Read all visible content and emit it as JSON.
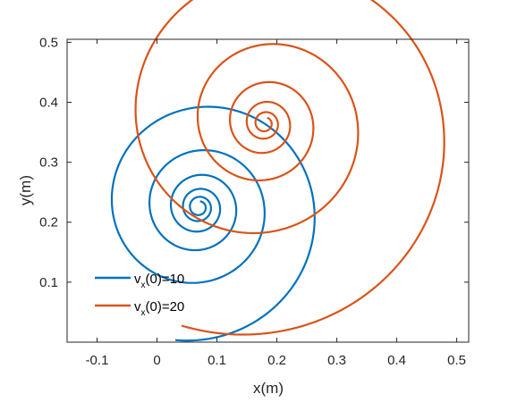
{
  "chart_data": {
    "type": "line",
    "xlabel": "x(m)",
    "ylabel": "y(m)",
    "xlim": [
      -0.15,
      0.52
    ],
    "ylim": [
      0.0,
      0.505
    ],
    "xticks": [
      -0.1,
      0,
      0.1,
      0.2,
      0.3,
      0.4,
      0.5
    ],
    "xtick_labels": [
      "-0.1",
      "0",
      "0.1",
      "0.2",
      "0.3",
      "0.4",
      "0.5"
    ],
    "yticks": [
      0.1,
      0.2,
      0.3,
      0.4,
      0.5
    ],
    "ytick_labels": [
      "0.1",
      "0.2",
      "0.3",
      "0.4",
      "0.5"
    ],
    "grid": false,
    "box": true,
    "legend_position": "bottom-left",
    "series": [
      {
        "name": "v_x(0)=10",
        "legend_main": "v",
        "legend_sub": "x",
        "legend_rest": "(0)=10",
        "color": "#0072BD",
        "start": [
          0.03,
          0.0
        ],
        "center": [
          0.07,
          0.225
        ],
        "initial_radius": 0.225,
        "final_radius": 0.01,
        "turns": 5.5
      },
      {
        "name": "v_x(0)=20",
        "legend_main": "v",
        "legend_sub": "x",
        "legend_rest": "(0)=20",
        "color": "#D95319",
        "start": [
          0.03,
          0.0
        ],
        "center": [
          0.18,
          0.365
        ],
        "initial_radius": 0.365,
        "final_radius": 0.01,
        "turns": 5.5
      }
    ]
  }
}
